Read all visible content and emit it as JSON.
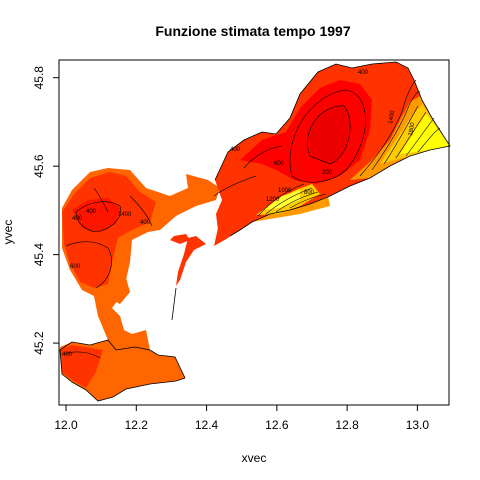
{
  "chart_data": {
    "type": "contour-map",
    "title": "Funzione stimata tempo 1997",
    "xlabel": "xvec",
    "ylabel": "yvec",
    "xlim": [
      11.98,
      13.09
    ],
    "ylim": [
      45.06,
      45.84
    ],
    "x_ticks": [
      "12.0",
      "12.2",
      "12.4",
      "12.6",
      "12.8",
      "13.0"
    ],
    "y_ticks": [
      "45.2",
      "45.4",
      "45.6",
      "45.8"
    ],
    "grid": false,
    "contour_levels": [
      "200",
      "400",
      "600",
      "800",
      "1000",
      "1200",
      "1400",
      "1600",
      "1800",
      "2000"
    ],
    "contour_labels": [
      {
        "text": "400",
        "x": 12.26,
        "y": 45.61
      },
      {
        "text": "600",
        "x": 12.52,
        "y": 45.58
      },
      {
        "text": "400",
        "x": 12.03,
        "y": 45.44
      },
      {
        "text": "400",
        "x": 12.13,
        "y": 45.47
      },
      {
        "text": "400",
        "x": 12.19,
        "y": 45.46
      },
      {
        "text": "1400",
        "x": 12.12,
        "y": 45.47
      },
      {
        "text": "600",
        "x": 12.03,
        "y": 45.39
      },
      {
        "text": "400",
        "x": 12.02,
        "y": 45.16
      },
      {
        "text": "200",
        "x": 12.78,
        "y": 45.59
      },
      {
        "text": "400",
        "x": 12.84,
        "y": 45.78
      },
      {
        "text": "800",
        "x": 12.83,
        "y": 45.54
      },
      {
        "text": "1000",
        "x": 12.66,
        "y": 45.54
      },
      {
        "text": "1200",
        "x": 12.66,
        "y": 45.51
      },
      {
        "text": "1400",
        "x": 12.94,
        "y": 45.72
      },
      {
        "text": "1800",
        "x": 12.98,
        "y": 45.64
      }
    ],
    "fill_colors": {
      "low": "#ff0000",
      "mid_low": "#ff3300",
      "mid": "#ff6600",
      "mid_high": "#ff9900",
      "high": "#ffcc00",
      "max": "#ffff00"
    }
  }
}
